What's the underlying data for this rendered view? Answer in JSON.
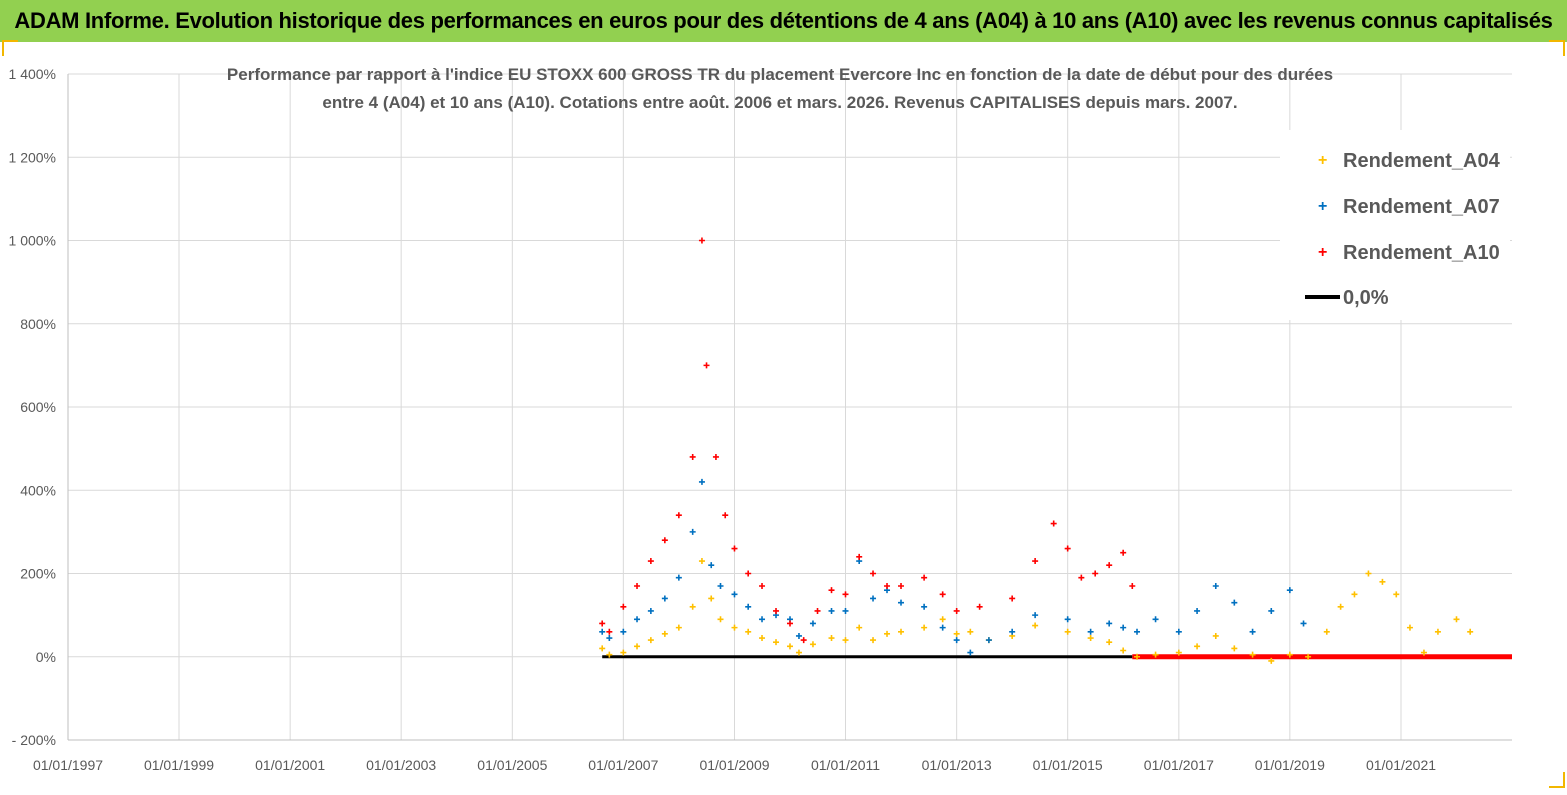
{
  "banner": {
    "title": "ADAM Informe. Evolution historique des performances en euros pour des détentions de 4 ans (A04) à 10 ans (A10) avec les revenus connus capitalisés"
  },
  "colors": {
    "banner_bg": "#92d050",
    "a04": "#ffc000",
    "a07": "#0070c0",
    "a10": "#ff0000",
    "zero": "#000000",
    "grid": "#d9d9d9"
  },
  "chart_data": {
    "type": "scatter",
    "title_line1": "Performance par rapport à l'indice EU STOXX 600 GROSS TR  du placement Evercore Inc en fonction de la date de début pour des durées",
    "title_line2": "entre 4 (A04) et 10 ans (A10). Cotations entre août. 2006 et mars. 2026. Revenus CAPITALISES depuis mars. 2007.",
    "y_ticks": [
      "1 400%",
      "1 200%",
      "1 000%",
      "800%",
      "600%",
      "400%",
      "200%",
      "0%",
      "- 200%"
    ],
    "y_tick_values": [
      1400,
      1200,
      1000,
      800,
      600,
      400,
      200,
      0,
      -200
    ],
    "ylim": [
      -200,
      1400
    ],
    "x_ticks": [
      "01/01/1997",
      "01/01/1999",
      "01/01/2001",
      "01/01/2003",
      "01/01/2005",
      "01/01/2007",
      "01/01/2009",
      "01/01/2011",
      "01/01/2013",
      "01/01/2015",
      "01/01/2017",
      "01/01/2019",
      "01/01/2021"
    ],
    "xlim": [
      "1997-01-01",
      "2023-01-01"
    ],
    "grid": "vertical and horizontal",
    "legend_position": "top-right",
    "legend": [
      "Rendement_A04",
      "Rendement_A07",
      "Rendement_A10",
      "0,0%"
    ],
    "series": [
      {
        "name": "Rendement_A04",
        "marker": "+",
        "points": [
          [
            "2006-08-15",
            20
          ],
          [
            "2006-10-01",
            5
          ],
          [
            "2007-01-01",
            10
          ],
          [
            "2007-04-01",
            25
          ],
          [
            "2007-07-01",
            40
          ],
          [
            "2007-10-01",
            55
          ],
          [
            "2008-01-01",
            70
          ],
          [
            "2008-04-01",
            120
          ],
          [
            "2008-06-01",
            230
          ],
          [
            "2008-08-01",
            140
          ],
          [
            "2008-10-01",
            90
          ],
          [
            "2009-01-01",
            70
          ],
          [
            "2009-04-01",
            60
          ],
          [
            "2009-07-01",
            45
          ],
          [
            "2009-10-01",
            35
          ],
          [
            "2010-01-01",
            25
          ],
          [
            "2010-03-01",
            10
          ],
          [
            "2010-06-01",
            30
          ],
          [
            "2010-10-01",
            45
          ],
          [
            "2011-01-01",
            40
          ],
          [
            "2011-04-01",
            70
          ],
          [
            "2011-07-01",
            40
          ],
          [
            "2011-10-01",
            55
          ],
          [
            "2012-01-01",
            60
          ],
          [
            "2012-06-01",
            70
          ],
          [
            "2012-10-01",
            90
          ],
          [
            "2013-01-01",
            55
          ],
          [
            "2013-04-01",
            60
          ],
          [
            "2013-08-01",
            40
          ],
          [
            "2014-01-01",
            50
          ],
          [
            "2014-06-01",
            75
          ],
          [
            "2015-01-01",
            60
          ],
          [
            "2015-06-01",
            45
          ],
          [
            "2015-10-01",
            35
          ],
          [
            "2016-01-01",
            15
          ],
          [
            "2016-04-01",
            0
          ],
          [
            "2016-08-01",
            5
          ],
          [
            "2017-01-01",
            10
          ],
          [
            "2017-05-01",
            25
          ],
          [
            "2017-09-01",
            50
          ],
          [
            "2018-01-01",
            20
          ],
          [
            "2018-05-01",
            5
          ],
          [
            "2018-09-01",
            -10
          ],
          [
            "2019-01-01",
            5
          ],
          [
            "2019-05-01",
            0
          ],
          [
            "2019-09-01",
            60
          ],
          [
            "2019-12-01",
            120
          ],
          [
            "2020-03-01",
            150
          ],
          [
            "2020-06-01",
            200
          ],
          [
            "2020-09-01",
            180
          ],
          [
            "2020-12-01",
            150
          ],
          [
            "2021-03-01",
            70
          ],
          [
            "2021-06-01",
            10
          ],
          [
            "2021-09-01",
            60
          ],
          [
            "2022-01-01",
            90
          ],
          [
            "2022-04-01",
            60
          ]
        ]
      },
      {
        "name": "Rendement_A07",
        "marker": "+",
        "points": [
          [
            "2006-08-15",
            60
          ],
          [
            "2006-10-01",
            45
          ],
          [
            "2007-01-01",
            60
          ],
          [
            "2007-04-01",
            90
          ],
          [
            "2007-07-01",
            110
          ],
          [
            "2007-10-01",
            140
          ],
          [
            "2008-01-01",
            190
          ],
          [
            "2008-04-01",
            300
          ],
          [
            "2008-06-01",
            420
          ],
          [
            "2008-08-01",
            220
          ],
          [
            "2008-10-01",
            170
          ],
          [
            "2009-01-01",
            150
          ],
          [
            "2009-04-01",
            120
          ],
          [
            "2009-07-01",
            90
          ],
          [
            "2009-10-01",
            100
          ],
          [
            "2010-01-01",
            90
          ],
          [
            "2010-03-01",
            50
          ],
          [
            "2010-06-01",
            80
          ],
          [
            "2010-10-01",
            110
          ],
          [
            "2011-01-01",
            110
          ],
          [
            "2011-04-01",
            230
          ],
          [
            "2011-07-01",
            140
          ],
          [
            "2011-10-01",
            160
          ],
          [
            "2012-01-01",
            130
          ],
          [
            "2012-06-01",
            120
          ],
          [
            "2012-10-01",
            70
          ],
          [
            "2013-01-01",
            40
          ],
          [
            "2013-04-01",
            10
          ],
          [
            "2013-08-01",
            40
          ],
          [
            "2014-01-01",
            60
          ],
          [
            "2014-06-01",
            100
          ],
          [
            "2015-01-01",
            90
          ],
          [
            "2015-06-01",
            60
          ],
          [
            "2015-10-01",
            80
          ],
          [
            "2016-01-01",
            70
          ],
          [
            "2016-04-01",
            60
          ],
          [
            "2016-08-01",
            90
          ],
          [
            "2017-01-01",
            60
          ],
          [
            "2017-05-01",
            110
          ],
          [
            "2017-09-01",
            170
          ],
          [
            "2018-01-01",
            130
          ],
          [
            "2018-05-01",
            60
          ],
          [
            "2018-09-01",
            110
          ],
          [
            "2019-01-01",
            160
          ],
          [
            "2019-04-01",
            80
          ]
        ]
      },
      {
        "name": "Rendement_A10",
        "marker": "+",
        "points": [
          [
            "2006-08-15",
            80
          ],
          [
            "2006-10-01",
            60
          ],
          [
            "2007-01-01",
            120
          ],
          [
            "2007-04-01",
            170
          ],
          [
            "2007-07-01",
            230
          ],
          [
            "2007-10-01",
            280
          ],
          [
            "2008-01-01",
            340
          ],
          [
            "2008-04-01",
            480
          ],
          [
            "2008-06-01",
            1000
          ],
          [
            "2008-07-01",
            700
          ],
          [
            "2008-09-01",
            480
          ],
          [
            "2008-11-01",
            340
          ],
          [
            "2009-01-01",
            260
          ],
          [
            "2009-04-01",
            200
          ],
          [
            "2009-07-01",
            170
          ],
          [
            "2009-10-01",
            110
          ],
          [
            "2010-01-01",
            80
          ],
          [
            "2010-04-01",
            40
          ],
          [
            "2010-07-01",
            110
          ],
          [
            "2010-10-01",
            160
          ],
          [
            "2011-01-01",
            150
          ],
          [
            "2011-04-01",
            240
          ],
          [
            "2011-07-01",
            200
          ],
          [
            "2011-10-01",
            170
          ],
          [
            "2012-01-01",
            170
          ],
          [
            "2012-06-01",
            190
          ],
          [
            "2012-10-01",
            150
          ],
          [
            "2013-01-01",
            110
          ],
          [
            "2013-06-01",
            120
          ],
          [
            "2014-01-01",
            140
          ],
          [
            "2014-06-01",
            230
          ],
          [
            "2014-10-01",
            320
          ],
          [
            "2015-01-01",
            260
          ],
          [
            "2015-04-01",
            190
          ],
          [
            "2015-07-01",
            200
          ],
          [
            "2015-10-01",
            220
          ],
          [
            "2016-01-01",
            250
          ],
          [
            "2016-03-01",
            170
          ]
        ]
      }
    ],
    "zero_line_segments": [
      {
        "from": "2006-08-15",
        "to": "2016-03-01",
        "value": 0,
        "color": "#000000"
      },
      {
        "from": "2016-03-01",
        "to": "2023-01-01",
        "value": 0,
        "color": "#ff0000"
      }
    ]
  }
}
